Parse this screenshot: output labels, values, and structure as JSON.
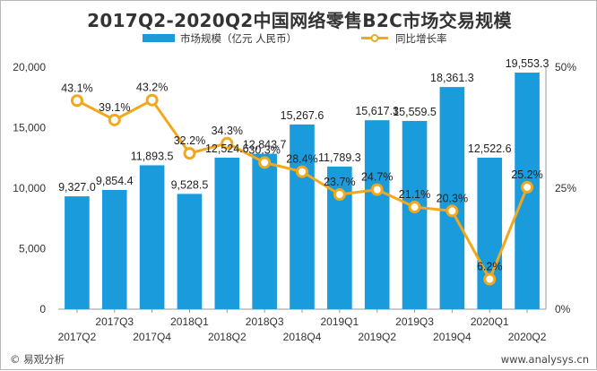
{
  "chart_data": {
    "type": "bar",
    "title": "2017Q2-2020Q2中国网络零售B2C市场交易规模",
    "categories": [
      "2017Q2",
      "2017Q3",
      "2017Q4",
      "2018Q1",
      "2018Q2",
      "2018Q3",
      "2018Q4",
      "2019Q1",
      "2019Q2",
      "2019Q3",
      "2019Q4",
      "2020Q1",
      "2020Q2"
    ],
    "series": [
      {
        "name": "市场规模（亿元 人民币）",
        "type": "bar",
        "axis": "left",
        "color": "#1a9bdc",
        "values": [
          9327.0,
          9854.4,
          11893.5,
          9528.5,
          12524.6,
          12843.7,
          15267.6,
          11789.3,
          15617.3,
          15559.5,
          18361.3,
          12522.6,
          19553.3
        ],
        "labels": [
          "9,327.0",
          "9,854.4",
          "11,893.5",
          "9,528.5",
          "12,524.6",
          "12,843.7",
          "15,267.6",
          "11,789.3",
          "15,617.3",
          "15,559.5",
          "18,361.3",
          "12,522.6",
          "19,553.3"
        ]
      },
      {
        "name": "同比增长率",
        "type": "line",
        "axis": "right",
        "color": "#f2a81d",
        "values": [
          43.1,
          39.1,
          43.2,
          32.2,
          34.3,
          30.3,
          28.4,
          23.7,
          24.7,
          21.1,
          20.3,
          6.2,
          25.2
        ],
        "labels": [
          "43.1%",
          "39.1%",
          "43.2%",
          "32.2%",
          "34.3%",
          "30.3%",
          "28.4%",
          "23.7%",
          "24.7%",
          "21.1%",
          "20.3%",
          "6.2%",
          "25.2%"
        ]
      }
    ],
    "y_left": {
      "min": 0,
      "max": 20000,
      "ticks": [
        0,
        5000,
        10000,
        15000,
        20000
      ],
      "tick_labels": [
        "0",
        "5,000",
        "10,000",
        "15,000",
        "20,000"
      ]
    },
    "y_right": {
      "min": 0,
      "max": 50,
      "ticks": [
        0,
        25,
        50
      ],
      "tick_labels": [
        "0%",
        "25%",
        "50%"
      ]
    },
    "grid": false,
    "legend": "top-center"
  },
  "footer": {
    "source": "© 易观分析",
    "url": "www.analysys.cn"
  }
}
